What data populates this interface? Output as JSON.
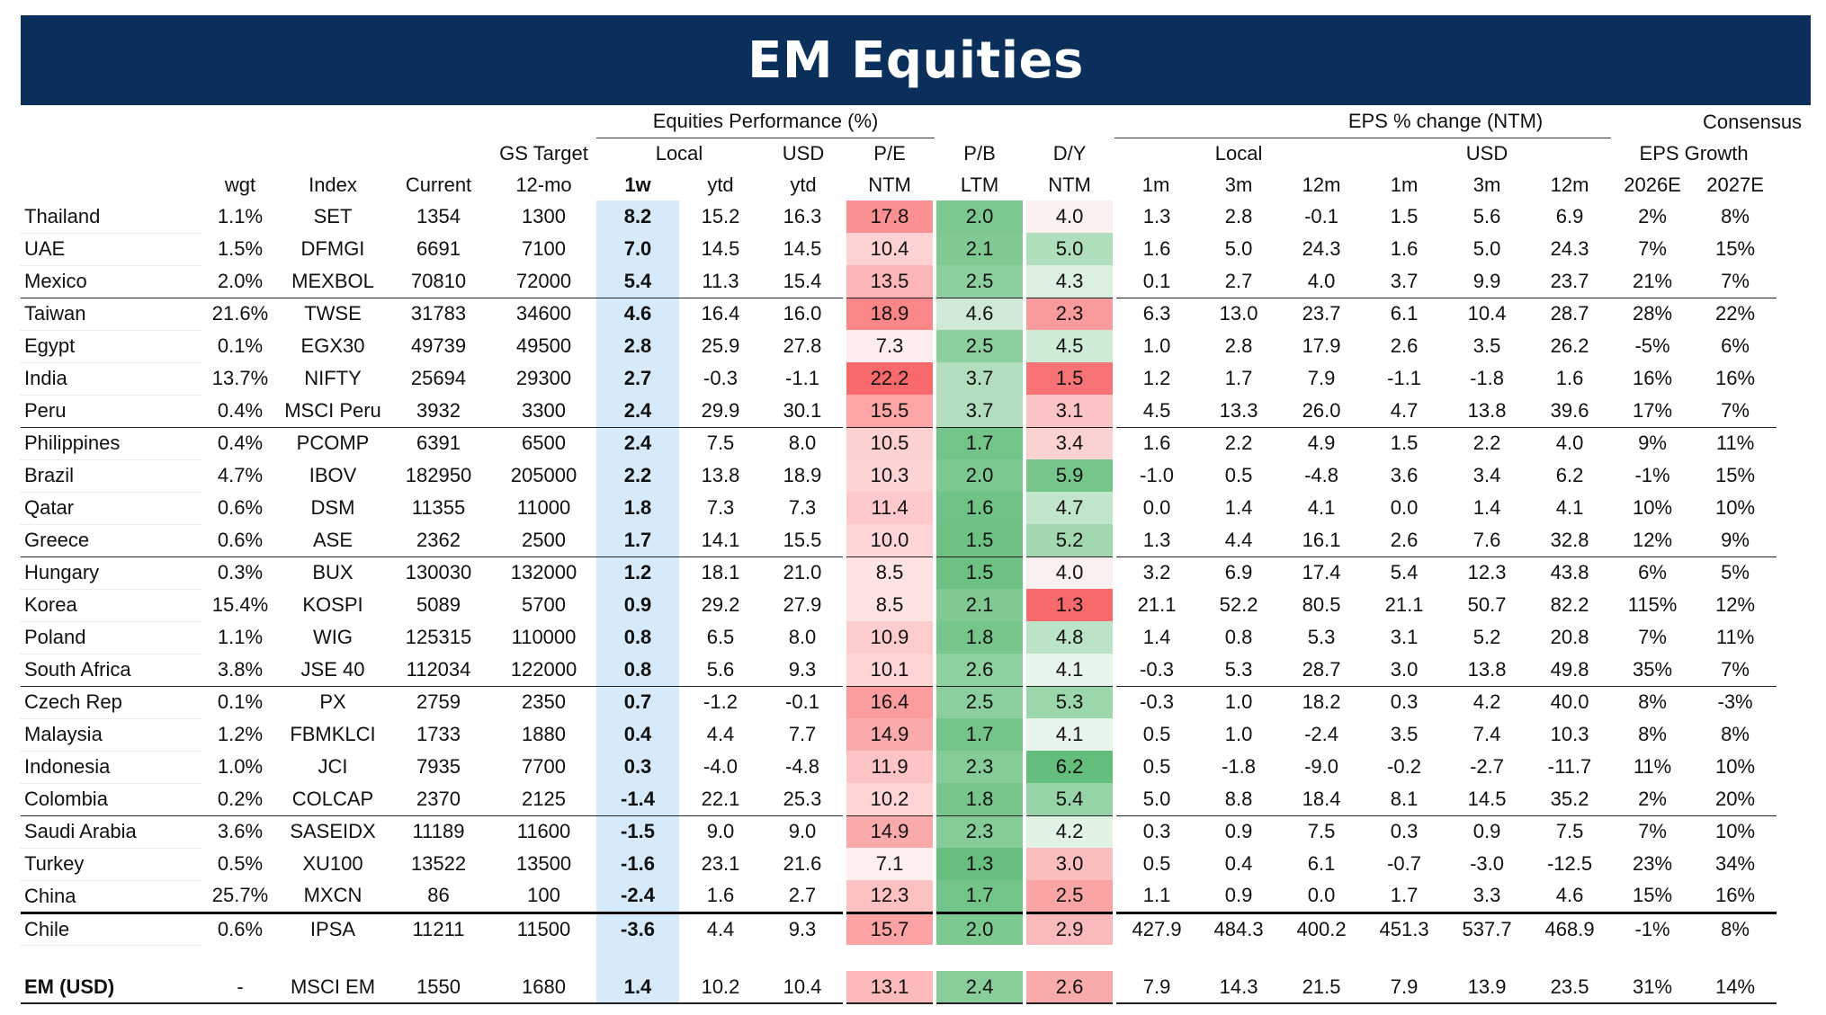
{
  "title": "EM Equities",
  "header": {
    "group_perf": "Equities Performance (%)",
    "group_eps": "EPS % change (NTM)",
    "group_cons1": "Consensus",
    "group_cons2": "EPS Growth",
    "sub_gs": "GS Target",
    "sub_local": "Local",
    "sub_usd": "USD",
    "sub_pe": "P/E",
    "sub_pb": "P/B",
    "sub_dy": "D/Y",
    "sub_eps_local": "Local",
    "sub_eps_usd": "USD",
    "cols": [
      "",
      "wgt",
      "Index",
      "Current",
      "12-mo",
      "1w",
      "ytd",
      "ytd",
      "NTM",
      "LTM",
      "NTM",
      "1m",
      "3m",
      "12m",
      "1m",
      "3m",
      "12m",
      "2026E",
      "2027E"
    ]
  },
  "colors": {
    "banner": "#0b2f5b",
    "perf_highlight": "#d6eafa",
    "red_strong": "#f8696b",
    "green_strong": "#63be7b"
  },
  "rows": [
    {
      "country": "Thailand",
      "wgt": "1.1%",
      "index": "SET",
      "current": "1354",
      "target": "1300",
      "w1": "8.2",
      "ytd_local": "15.2",
      "ytd_usd": "16.3",
      "pe": "17.8",
      "pb": "2.0",
      "dy": "4.0",
      "eps_l_1m": "1.3",
      "eps_l_3m": "2.8",
      "eps_l_12m": "-0.1",
      "eps_u_1m": "1.5",
      "eps_u_3m": "5.6",
      "eps_u_12m": "6.9",
      "g26": "2%",
      "g27": "8%"
    },
    {
      "country": "UAE",
      "wgt": "1.5%",
      "index": "DFMGI",
      "current": "6691",
      "target": "7100",
      "w1": "7.0",
      "ytd_local": "14.5",
      "ytd_usd": "14.5",
      "pe": "10.4",
      "pb": "2.1",
      "dy": "5.0",
      "eps_l_1m": "1.6",
      "eps_l_3m": "5.0",
      "eps_l_12m": "24.3",
      "eps_u_1m": "1.6",
      "eps_u_3m": "5.0",
      "eps_u_12m": "24.3",
      "g26": "7%",
      "g27": "15%"
    },
    {
      "country": "Mexico",
      "wgt": "2.0%",
      "index": "MEXBOL",
      "current": "70810",
      "target": "72000",
      "w1": "5.4",
      "ytd_local": "11.3",
      "ytd_usd": "15.4",
      "pe": "13.5",
      "pb": "2.5",
      "dy": "4.3",
      "eps_l_1m": "0.1",
      "eps_l_3m": "2.7",
      "eps_l_12m": "4.0",
      "eps_u_1m": "3.7",
      "eps_u_3m": "9.9",
      "eps_u_12m": "23.7",
      "g26": "21%",
      "g27": "7%"
    },
    {
      "country": "Taiwan",
      "wgt": "21.6%",
      "index": "TWSE",
      "current": "31783",
      "target": "34600",
      "w1": "4.6",
      "ytd_local": "16.4",
      "ytd_usd": "16.0",
      "pe": "18.9",
      "pb": "4.6",
      "dy": "2.3",
      "eps_l_1m": "6.3",
      "eps_l_3m": "13.0",
      "eps_l_12m": "23.7",
      "eps_u_1m": "6.1",
      "eps_u_3m": "10.4",
      "eps_u_12m": "28.7",
      "g26": "28%",
      "g27": "22%"
    },
    {
      "country": "Egypt",
      "wgt": "0.1%",
      "index": "EGX30",
      "current": "49739",
      "target": "49500",
      "w1": "2.8",
      "ytd_local": "25.9",
      "ytd_usd": "27.8",
      "pe": "7.3",
      "pb": "2.5",
      "dy": "4.5",
      "eps_l_1m": "1.0",
      "eps_l_3m": "2.8",
      "eps_l_12m": "17.9",
      "eps_u_1m": "2.6",
      "eps_u_3m": "3.5",
      "eps_u_12m": "26.2",
      "g26": "-5%",
      "g27": "6%"
    },
    {
      "country": "India",
      "wgt": "13.7%",
      "index": "NIFTY",
      "current": "25694",
      "target": "29300",
      "w1": "2.7",
      "ytd_local": "-0.3",
      "ytd_usd": "-1.1",
      "pe": "22.2",
      "pb": "3.7",
      "dy": "1.5",
      "eps_l_1m": "1.2",
      "eps_l_3m": "1.7",
      "eps_l_12m": "7.9",
      "eps_u_1m": "-1.1",
      "eps_u_3m": "-1.8",
      "eps_u_12m": "1.6",
      "g26": "16%",
      "g27": "16%"
    },
    {
      "country": "Peru",
      "wgt": "0.4%",
      "index": "MSCI Peru",
      "current": "3932",
      "target": "3300",
      "w1": "2.4",
      "ytd_local": "29.9",
      "ytd_usd": "30.1",
      "pe": "15.5",
      "pb": "3.7",
      "dy": "3.1",
      "eps_l_1m": "4.5",
      "eps_l_3m": "13.3",
      "eps_l_12m": "26.0",
      "eps_u_1m": "4.7",
      "eps_u_3m": "13.8",
      "eps_u_12m": "39.6",
      "g26": "17%",
      "g27": "7%"
    },
    {
      "country": "Philippines",
      "wgt": "0.4%",
      "index": "PCOMP",
      "current": "6391",
      "target": "6500",
      "w1": "2.4",
      "ytd_local": "7.5",
      "ytd_usd": "8.0",
      "pe": "10.5",
      "pb": "1.7",
      "dy": "3.4",
      "eps_l_1m": "1.6",
      "eps_l_3m": "2.2",
      "eps_l_12m": "4.9",
      "eps_u_1m": "1.5",
      "eps_u_3m": "2.2",
      "eps_u_12m": "4.0",
      "g26": "9%",
      "g27": "11%"
    },
    {
      "country": "Brazil",
      "wgt": "4.7%",
      "index": "IBOV",
      "current": "182950",
      "target": "205000",
      "w1": "2.2",
      "ytd_local": "13.8",
      "ytd_usd": "18.9",
      "pe": "10.3",
      "pb": "2.0",
      "dy": "5.9",
      "eps_l_1m": "-1.0",
      "eps_l_3m": "0.5",
      "eps_l_12m": "-4.8",
      "eps_u_1m": "3.6",
      "eps_u_3m": "3.4",
      "eps_u_12m": "6.2",
      "g26": "-1%",
      "g27": "15%"
    },
    {
      "country": "Qatar",
      "wgt": "0.6%",
      "index": "DSM",
      "current": "11355",
      "target": "11000",
      "w1": "1.8",
      "ytd_local": "7.3",
      "ytd_usd": "7.3",
      "pe": "11.4",
      "pb": "1.6",
      "dy": "4.7",
      "eps_l_1m": "0.0",
      "eps_l_3m": "1.4",
      "eps_l_12m": "4.1",
      "eps_u_1m": "0.0",
      "eps_u_3m": "1.4",
      "eps_u_12m": "4.1",
      "g26": "10%",
      "g27": "10%"
    },
    {
      "country": "Greece",
      "wgt": "0.6%",
      "index": "ASE",
      "current": "2362",
      "target": "2500",
      "w1": "1.7",
      "ytd_local": "14.1",
      "ytd_usd": "15.5",
      "pe": "10.0",
      "pb": "1.5",
      "dy": "5.2",
      "eps_l_1m": "1.3",
      "eps_l_3m": "4.4",
      "eps_l_12m": "16.1",
      "eps_u_1m": "2.6",
      "eps_u_3m": "7.6",
      "eps_u_12m": "32.8",
      "g26": "12%",
      "g27": "9%"
    },
    {
      "country": "Hungary",
      "wgt": "0.3%",
      "index": "BUX",
      "current": "130030",
      "target": "132000",
      "w1": "1.2",
      "ytd_local": "18.1",
      "ytd_usd": "21.0",
      "pe": "8.5",
      "pb": "1.5",
      "dy": "4.0",
      "eps_l_1m": "3.2",
      "eps_l_3m": "6.9",
      "eps_l_12m": "17.4",
      "eps_u_1m": "5.4",
      "eps_u_3m": "12.3",
      "eps_u_12m": "43.8",
      "g26": "6%",
      "g27": "5%"
    },
    {
      "country": "Korea",
      "wgt": "15.4%",
      "index": "KOSPI",
      "current": "5089",
      "target": "5700",
      "w1": "0.9",
      "ytd_local": "29.2",
      "ytd_usd": "27.9",
      "pe": "8.5",
      "pb": "2.1",
      "dy": "1.3",
      "eps_l_1m": "21.1",
      "eps_l_3m": "52.2",
      "eps_l_12m": "80.5",
      "eps_u_1m": "21.1",
      "eps_u_3m": "50.7",
      "eps_u_12m": "82.2",
      "g26": "115%",
      "g27": "12%"
    },
    {
      "country": "Poland",
      "wgt": "1.1%",
      "index": "WIG",
      "current": "125315",
      "target": "110000",
      "w1": "0.8",
      "ytd_local": "6.5",
      "ytd_usd": "8.0",
      "pe": "10.9",
      "pb": "1.8",
      "dy": "4.8",
      "eps_l_1m": "1.4",
      "eps_l_3m": "0.8",
      "eps_l_12m": "5.3",
      "eps_u_1m": "3.1",
      "eps_u_3m": "5.2",
      "eps_u_12m": "20.8",
      "g26": "7%",
      "g27": "11%"
    },
    {
      "country": "South Africa",
      "wgt": "3.8%",
      "index": "JSE 40",
      "current": "112034",
      "target": "122000",
      "w1": "0.8",
      "ytd_local": "5.6",
      "ytd_usd": "9.3",
      "pe": "10.1",
      "pb": "2.6",
      "dy": "4.1",
      "eps_l_1m": "-0.3",
      "eps_l_3m": "5.3",
      "eps_l_12m": "28.7",
      "eps_u_1m": "3.0",
      "eps_u_3m": "13.8",
      "eps_u_12m": "49.8",
      "g26": "35%",
      "g27": "7%"
    },
    {
      "country": "Czech Rep",
      "wgt": "0.1%",
      "index": "PX",
      "current": "2759",
      "target": "2350",
      "w1": "0.7",
      "ytd_local": "-1.2",
      "ytd_usd": "-0.1",
      "pe": "16.4",
      "pb": "2.5",
      "dy": "5.3",
      "eps_l_1m": "-0.3",
      "eps_l_3m": "1.0",
      "eps_l_12m": "18.2",
      "eps_u_1m": "0.3",
      "eps_u_3m": "4.2",
      "eps_u_12m": "40.0",
      "g26": "8%",
      "g27": "-3%"
    },
    {
      "country": "Malaysia",
      "wgt": "1.2%",
      "index": "FBMKLCI",
      "current": "1733",
      "target": "1880",
      "w1": "0.4",
      "ytd_local": "4.4",
      "ytd_usd": "7.7",
      "pe": "14.9",
      "pb": "1.7",
      "dy": "4.1",
      "eps_l_1m": "0.5",
      "eps_l_3m": "1.0",
      "eps_l_12m": "-2.4",
      "eps_u_1m": "3.5",
      "eps_u_3m": "7.4",
      "eps_u_12m": "10.3",
      "g26": "8%",
      "g27": "8%"
    },
    {
      "country": "Indonesia",
      "wgt": "1.0%",
      "index": "JCI",
      "current": "7935",
      "target": "7700",
      "w1": "0.3",
      "ytd_local": "-4.0",
      "ytd_usd": "-4.8",
      "pe": "11.9",
      "pb": "2.3",
      "dy": "6.2",
      "eps_l_1m": "0.5",
      "eps_l_3m": "-1.8",
      "eps_l_12m": "-9.0",
      "eps_u_1m": "-0.2",
      "eps_u_3m": "-2.7",
      "eps_u_12m": "-11.7",
      "g26": "11%",
      "g27": "10%"
    },
    {
      "country": "Colombia",
      "wgt": "0.2%",
      "index": "COLCAP",
      "current": "2370",
      "target": "2125",
      "w1": "-1.4",
      "ytd_local": "22.1",
      "ytd_usd": "25.3",
      "pe": "10.2",
      "pb": "1.8",
      "dy": "5.4",
      "eps_l_1m": "5.0",
      "eps_l_3m": "8.8",
      "eps_l_12m": "18.4",
      "eps_u_1m": "8.1",
      "eps_u_3m": "14.5",
      "eps_u_12m": "35.2",
      "g26": "2%",
      "g27": "20%"
    },
    {
      "country": "Saudi Arabia",
      "wgt": "3.6%",
      "index": "SASEIDX",
      "current": "11189",
      "target": "11600",
      "w1": "-1.5",
      "ytd_local": "9.0",
      "ytd_usd": "9.0",
      "pe": "14.9",
      "pb": "2.3",
      "dy": "4.2",
      "eps_l_1m": "0.3",
      "eps_l_3m": "0.9",
      "eps_l_12m": "7.5",
      "eps_u_1m": "0.3",
      "eps_u_3m": "0.9",
      "eps_u_12m": "7.5",
      "g26": "7%",
      "g27": "10%"
    },
    {
      "country": "Turkey",
      "wgt": "0.5%",
      "index": "XU100",
      "current": "13522",
      "target": "13500",
      "w1": "-1.6",
      "ytd_local": "23.1",
      "ytd_usd": "21.6",
      "pe": "7.1",
      "pb": "1.3",
      "dy": "3.0",
      "eps_l_1m": "0.5",
      "eps_l_3m": "0.4",
      "eps_l_12m": "6.1",
      "eps_u_1m": "-0.7",
      "eps_u_3m": "-3.0",
      "eps_u_12m": "-12.5",
      "g26": "23%",
      "g27": "34%"
    },
    {
      "country": "China",
      "wgt": "25.7%",
      "index": "MXCN",
      "current": "86",
      "target": "100",
      "w1": "-2.4",
      "ytd_local": "1.6",
      "ytd_usd": "2.7",
      "pe": "12.3",
      "pb": "1.7",
      "dy": "2.5",
      "eps_l_1m": "1.1",
      "eps_l_3m": "0.9",
      "eps_l_12m": "0.0",
      "eps_u_1m": "1.7",
      "eps_u_3m": "3.3",
      "eps_u_12m": "4.6",
      "g26": "15%",
      "g27": "16%"
    },
    {
      "country": "Chile",
      "wgt": "0.6%",
      "index": "IPSA",
      "current": "11211",
      "target": "11500",
      "w1": "-3.6",
      "ytd_local": "4.4",
      "ytd_usd": "9.3",
      "pe": "15.7",
      "pb": "2.0",
      "dy": "2.9",
      "eps_l_1m": "427.9",
      "eps_l_3m": "484.3",
      "eps_l_12m": "400.2",
      "eps_u_1m": "451.3",
      "eps_u_3m": "537.7",
      "eps_u_12m": "468.9",
      "g26": "-1%",
      "g27": "8%"
    }
  ],
  "total": {
    "country": "EM (USD)",
    "wgt": "-",
    "index": "MSCI EM",
    "current": "1550",
    "target": "1680",
    "w1": "1.4",
    "ytd_local": "10.2",
    "ytd_usd": "10.4",
    "pe": "13.1",
    "pb": "2.4",
    "dy": "2.6",
    "eps_l_1m": "7.9",
    "eps_l_3m": "14.3",
    "eps_l_12m": "21.5",
    "eps_u_1m": "7.9",
    "eps_u_3m": "13.9",
    "eps_u_12m": "23.5",
    "g26": "31%",
    "g27": "14%"
  }
}
